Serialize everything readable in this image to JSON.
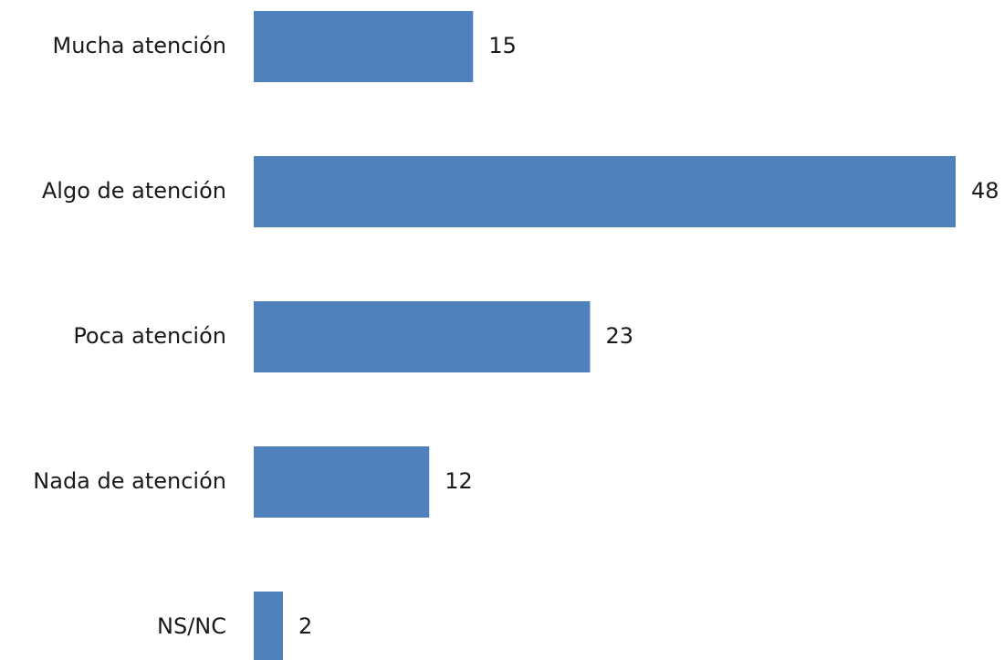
{
  "chart_data": {
    "type": "bar",
    "orientation": "horizontal",
    "categories": [
      "Mucha atención",
      "Algo de atención",
      "Poca atención",
      "Nada de atención",
      "NS/NC"
    ],
    "values": [
      15,
      48,
      23,
      12,
      2
    ],
    "data_labels": [
      "15",
      "48",
      "23",
      "12",
      "2"
    ],
    "bar_color": "#4f81bd",
    "title": "",
    "xlabel": "",
    "ylabel": "",
    "xlim": [
      0,
      48
    ],
    "grid": false,
    "legend": "none"
  }
}
